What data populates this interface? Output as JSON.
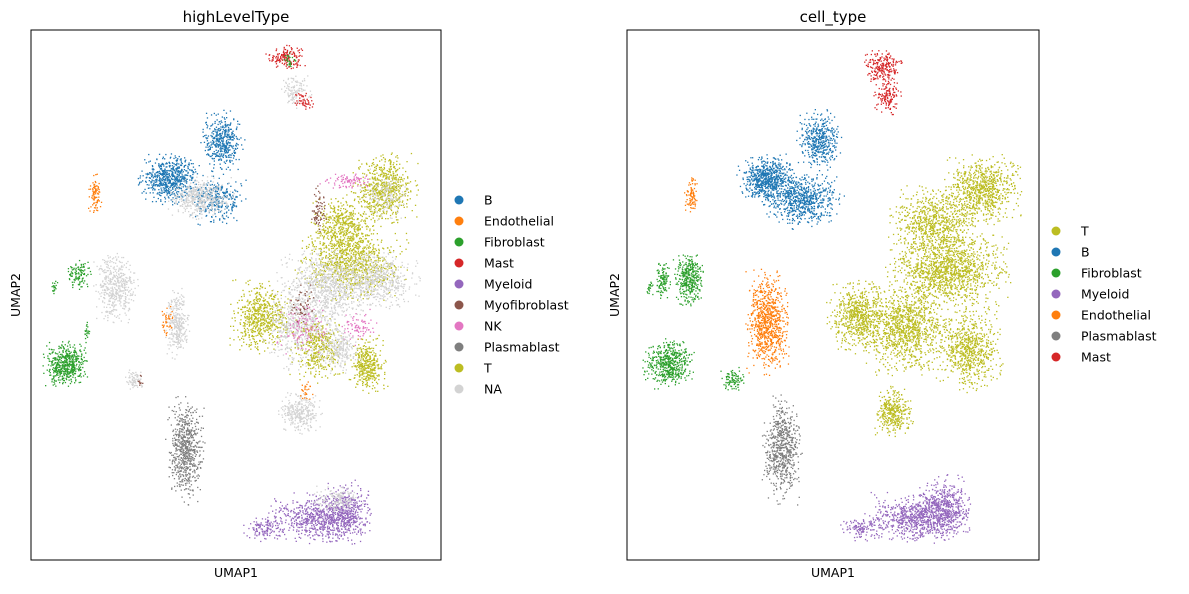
{
  "chart_data": [
    {
      "type": "scatter",
      "title": "highLevelType",
      "xlabel": "UMAP1",
      "ylabel": "UMAP2",
      "ticks": "none",
      "grid": false,
      "legend_position": "right",
      "legend": [
        {
          "label": "B",
          "color": "#1f77b4"
        },
        {
          "label": "Endothelial",
          "color": "#ff7f0e"
        },
        {
          "label": "Fibroblast",
          "color": "#2ca02c"
        },
        {
          "label": "Mast",
          "color": "#d62728"
        },
        {
          "label": "Myeloid",
          "color": "#9467bd"
        },
        {
          "label": "Myofibroblast",
          "color": "#8c564b"
        },
        {
          "label": "NK",
          "color": "#e377c2"
        },
        {
          "label": "Plasmablast",
          "color": "#7f7f7f"
        },
        {
          "label": "T",
          "color": "#bcbd22"
        },
        {
          "label": "NA",
          "color": "#d3d3d3"
        }
      ],
      "clusters": [
        {
          "label": "Mast",
          "color": "#d62728",
          "cx": 0.62,
          "cy": 0.95,
          "rx": 0.035,
          "ry": 0.018,
          "n": 160
        },
        {
          "label": "Fibroblast",
          "color": "#2ca02c",
          "cx": 0.63,
          "cy": 0.945,
          "rx": 0.012,
          "ry": 0.01,
          "n": 25
        },
        {
          "label": "NA",
          "color": "#d3d3d3",
          "cx": 0.645,
          "cy": 0.885,
          "rx": 0.03,
          "ry": 0.025,
          "n": 120
        },
        {
          "label": "Mast",
          "color": "#d62728",
          "cx": 0.665,
          "cy": 0.868,
          "rx": 0.02,
          "ry": 0.012,
          "n": 50
        },
        {
          "label": "B",
          "color": "#1f77b4",
          "cx": 0.465,
          "cy": 0.79,
          "rx": 0.04,
          "ry": 0.045,
          "n": 420
        },
        {
          "label": "B",
          "color": "#1f77b4",
          "cx": 0.34,
          "cy": 0.72,
          "rx": 0.058,
          "ry": 0.035,
          "n": 650
        },
        {
          "label": "B",
          "color": "#1f77b4",
          "cx": 0.455,
          "cy": 0.68,
          "rx": 0.05,
          "ry": 0.035,
          "n": 300
        },
        {
          "label": "NA",
          "color": "#d3d3d3",
          "cx": 0.41,
          "cy": 0.685,
          "rx": 0.06,
          "ry": 0.03,
          "n": 450
        },
        {
          "label": "Endothelial",
          "color": "#ff7f0e",
          "cx": 0.155,
          "cy": 0.69,
          "rx": 0.012,
          "ry": 0.03,
          "n": 90
        },
        {
          "label": "T",
          "color": "#bcbd22",
          "cx": 0.86,
          "cy": 0.7,
          "rx": 0.06,
          "ry": 0.05,
          "n": 650
        },
        {
          "label": "NA",
          "color": "#d3d3d3",
          "cx": 0.86,
          "cy": 0.69,
          "rx": 0.045,
          "ry": 0.035,
          "n": 150
        },
        {
          "label": "T",
          "color": "#bcbd22",
          "cx": 0.76,
          "cy": 0.63,
          "rx": 0.06,
          "ry": 0.045,
          "n": 500
        },
        {
          "label": "NK",
          "color": "#e377c2",
          "cx": 0.77,
          "cy": 0.715,
          "rx": 0.05,
          "ry": 0.012,
          "n": 90
        },
        {
          "label": "Myofibroblast",
          "color": "#8c564b",
          "cx": 0.7,
          "cy": 0.66,
          "rx": 0.015,
          "ry": 0.035,
          "n": 70
        },
        {
          "label": "T",
          "color": "#bcbd22",
          "cx": 0.78,
          "cy": 0.56,
          "rx": 0.1,
          "ry": 0.05,
          "n": 850
        },
        {
          "label": "NA",
          "color": "#d3d3d3",
          "cx": 0.72,
          "cy": 0.52,
          "rx": 0.09,
          "ry": 0.05,
          "n": 850
        },
        {
          "label": "NA",
          "color": "#d3d3d3",
          "cx": 0.85,
          "cy": 0.53,
          "rx": 0.07,
          "ry": 0.04,
          "n": 500
        },
        {
          "label": "T",
          "color": "#bcbd22",
          "cx": 0.56,
          "cy": 0.46,
          "rx": 0.055,
          "ry": 0.05,
          "n": 600
        },
        {
          "label": "NA",
          "color": "#d3d3d3",
          "cx": 0.66,
          "cy": 0.44,
          "rx": 0.07,
          "ry": 0.06,
          "n": 650
        },
        {
          "label": "T",
          "color": "#bcbd22",
          "cx": 0.7,
          "cy": 0.4,
          "rx": 0.05,
          "ry": 0.05,
          "n": 350
        },
        {
          "label": "NK",
          "color": "#e377c2",
          "cx": 0.66,
          "cy": 0.44,
          "rx": 0.05,
          "ry": 0.04,
          "n": 110
        },
        {
          "label": "NK",
          "color": "#e377c2",
          "cx": 0.8,
          "cy": 0.44,
          "rx": 0.035,
          "ry": 0.025,
          "n": 80
        },
        {
          "label": "Myofibroblast",
          "color": "#8c564b",
          "cx": 0.66,
          "cy": 0.48,
          "rx": 0.03,
          "ry": 0.03,
          "n": 50
        },
        {
          "label": "T",
          "color": "#bcbd22",
          "cx": 0.82,
          "cy": 0.37,
          "rx": 0.035,
          "ry": 0.04,
          "n": 380
        },
        {
          "label": "NA",
          "color": "#d3d3d3",
          "cx": 0.75,
          "cy": 0.4,
          "rx": 0.04,
          "ry": 0.035,
          "n": 250
        },
        {
          "label": "NA",
          "color": "#d3d3d3",
          "cx": 0.205,
          "cy": 0.515,
          "rx": 0.04,
          "ry": 0.05,
          "n": 450
        },
        {
          "label": "Fibroblast",
          "color": "#2ca02c",
          "cx": 0.115,
          "cy": 0.54,
          "rx": 0.022,
          "ry": 0.022,
          "n": 110
        },
        {
          "label": "Fibroblast",
          "color": "#2ca02c",
          "cx": 0.055,
          "cy": 0.515,
          "rx": 0.006,
          "ry": 0.012,
          "n": 20
        },
        {
          "label": "NA",
          "color": "#d3d3d3",
          "cx": 0.355,
          "cy": 0.445,
          "rx": 0.022,
          "ry": 0.05,
          "n": 300
        },
        {
          "label": "Endothelial",
          "color": "#ff7f0e",
          "cx": 0.33,
          "cy": 0.455,
          "rx": 0.012,
          "ry": 0.025,
          "n": 40
        },
        {
          "label": "Fibroblast",
          "color": "#2ca02c",
          "cx": 0.085,
          "cy": 0.37,
          "rx": 0.042,
          "ry": 0.032,
          "n": 500
        },
        {
          "label": "Fibroblast",
          "color": "#2ca02c",
          "cx": 0.135,
          "cy": 0.43,
          "rx": 0.005,
          "ry": 0.015,
          "n": 20
        },
        {
          "label": "NA",
          "color": "#d3d3d3",
          "cx": 0.25,
          "cy": 0.34,
          "rx": 0.018,
          "ry": 0.015,
          "n": 70
        },
        {
          "label": "Myofibroblast",
          "color": "#8c564b",
          "cx": 0.265,
          "cy": 0.34,
          "rx": 0.006,
          "ry": 0.008,
          "n": 10
        },
        {
          "label": "NA",
          "color": "#d3d3d3",
          "cx": 0.655,
          "cy": 0.28,
          "rx": 0.04,
          "ry": 0.03,
          "n": 300
        },
        {
          "label": "Endothelial",
          "color": "#ff7f0e",
          "cx": 0.67,
          "cy": 0.32,
          "rx": 0.012,
          "ry": 0.015,
          "n": 25
        },
        {
          "label": "Plasmablast",
          "color": "#7f7f7f",
          "cx": 0.375,
          "cy": 0.21,
          "rx": 0.035,
          "ry": 0.075,
          "n": 650
        },
        {
          "label": "Myeloid",
          "color": "#9467bd",
          "cx": 0.7,
          "cy": 0.08,
          "rx": 0.09,
          "ry": 0.035,
          "n": 650
        },
        {
          "label": "Myeloid",
          "color": "#9467bd",
          "cx": 0.77,
          "cy": 0.09,
          "rx": 0.045,
          "ry": 0.045,
          "n": 400
        },
        {
          "label": "Myeloid",
          "color": "#9467bd",
          "cx": 0.57,
          "cy": 0.06,
          "rx": 0.04,
          "ry": 0.018,
          "n": 120
        },
        {
          "label": "NA",
          "color": "#d3d3d3",
          "cx": 0.74,
          "cy": 0.115,
          "rx": 0.05,
          "ry": 0.02,
          "n": 150
        }
      ]
    },
    {
      "type": "scatter",
      "title": "cell_type",
      "xlabel": "UMAP1",
      "ylabel": "UMAP2",
      "ticks": "none",
      "grid": false,
      "legend_position": "right",
      "legend": [
        {
          "label": "T",
          "color": "#bcbd22"
        },
        {
          "label": "B",
          "color": "#1f77b4"
        },
        {
          "label": "Fibroblast",
          "color": "#2ca02c"
        },
        {
          "label": "Myeloid",
          "color": "#9467bd"
        },
        {
          "label": "Endothelial",
          "color": "#ff7f0e"
        },
        {
          "label": "Plasmablast",
          "color": "#7f7f7f"
        },
        {
          "label": "Mast",
          "color": "#d62728"
        }
      ],
      "clusters": [
        {
          "label": "Mast",
          "color": "#d62728",
          "cx": 0.62,
          "cy": 0.93,
          "rx": 0.035,
          "ry": 0.025,
          "n": 220
        },
        {
          "label": "Mast",
          "color": "#d62728",
          "cx": 0.63,
          "cy": 0.875,
          "rx": 0.025,
          "ry": 0.025,
          "n": 130
        },
        {
          "label": "B",
          "color": "#1f77b4",
          "cx": 0.465,
          "cy": 0.79,
          "rx": 0.04,
          "ry": 0.045,
          "n": 420
        },
        {
          "label": "B",
          "color": "#1f77b4",
          "cx": 0.34,
          "cy": 0.72,
          "rx": 0.058,
          "ry": 0.035,
          "n": 700
        },
        {
          "label": "B",
          "color": "#1f77b4",
          "cx": 0.43,
          "cy": 0.68,
          "rx": 0.07,
          "ry": 0.04,
          "n": 650
        },
        {
          "label": "Endothelial",
          "color": "#ff7f0e",
          "cx": 0.155,
          "cy": 0.69,
          "rx": 0.012,
          "ry": 0.03,
          "n": 90
        },
        {
          "label": "T",
          "color": "#bcbd22",
          "cx": 0.86,
          "cy": 0.7,
          "rx": 0.07,
          "ry": 0.05,
          "n": 800
        },
        {
          "label": "T",
          "color": "#bcbd22",
          "cx": 0.74,
          "cy": 0.64,
          "rx": 0.08,
          "ry": 0.05,
          "n": 700
        },
        {
          "label": "T",
          "color": "#bcbd22",
          "cx": 0.78,
          "cy": 0.55,
          "rx": 0.11,
          "ry": 0.055,
          "n": 1300
        },
        {
          "label": "T",
          "color": "#bcbd22",
          "cx": 0.56,
          "cy": 0.46,
          "rx": 0.055,
          "ry": 0.05,
          "n": 650
        },
        {
          "label": "T",
          "color": "#bcbd22",
          "cx": 0.68,
          "cy": 0.44,
          "rx": 0.08,
          "ry": 0.065,
          "n": 1100
        },
        {
          "label": "T",
          "color": "#bcbd22",
          "cx": 0.83,
          "cy": 0.4,
          "rx": 0.06,
          "ry": 0.06,
          "n": 700
        },
        {
          "label": "T",
          "color": "#bcbd22",
          "cx": 0.645,
          "cy": 0.28,
          "rx": 0.035,
          "ry": 0.035,
          "n": 350
        },
        {
          "label": "Fibroblast",
          "color": "#2ca02c",
          "cx": 0.15,
          "cy": 0.53,
          "rx": 0.028,
          "ry": 0.04,
          "n": 350
        },
        {
          "label": "Fibroblast",
          "color": "#2ca02c",
          "cx": 0.085,
          "cy": 0.53,
          "rx": 0.015,
          "ry": 0.025,
          "n": 110
        },
        {
          "label": "Fibroblast",
          "color": "#2ca02c",
          "cx": 0.055,
          "cy": 0.515,
          "rx": 0.006,
          "ry": 0.012,
          "n": 20
        },
        {
          "label": "Fibroblast",
          "color": "#2ca02c",
          "cx": 0.1,
          "cy": 0.37,
          "rx": 0.045,
          "ry": 0.035,
          "n": 500
        },
        {
          "label": "Fibroblast",
          "color": "#2ca02c",
          "cx": 0.255,
          "cy": 0.34,
          "rx": 0.022,
          "ry": 0.018,
          "n": 90
        },
        {
          "label": "Endothelial",
          "color": "#ff7f0e",
          "cx": 0.34,
          "cy": 0.45,
          "rx": 0.04,
          "ry": 0.075,
          "n": 800
        },
        {
          "label": "Plasmablast",
          "color": "#7f7f7f",
          "cx": 0.375,
          "cy": 0.21,
          "rx": 0.035,
          "ry": 0.075,
          "n": 650
        },
        {
          "label": "Myeloid",
          "color": "#9467bd",
          "cx": 0.7,
          "cy": 0.08,
          "rx": 0.09,
          "ry": 0.035,
          "n": 700
        },
        {
          "label": "Myeloid",
          "color": "#9467bd",
          "cx": 0.77,
          "cy": 0.1,
          "rx": 0.05,
          "ry": 0.045,
          "n": 500
        },
        {
          "label": "Myeloid",
          "color": "#9467bd",
          "cx": 0.57,
          "cy": 0.06,
          "rx": 0.04,
          "ry": 0.018,
          "n": 120
        }
      ]
    }
  ]
}
